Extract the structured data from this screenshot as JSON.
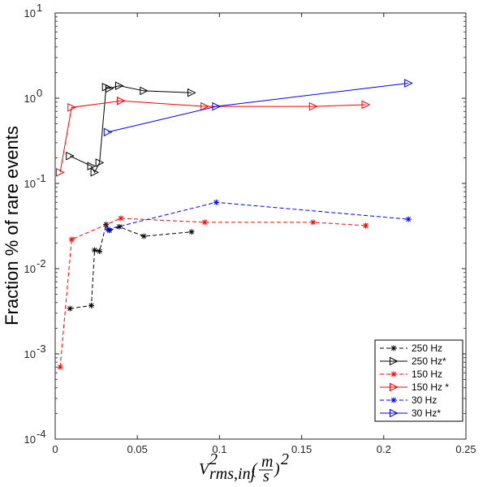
{
  "chart_data": {
    "type": "line",
    "title": "",
    "xlabel": {
      "base": "V",
      "sup": "2",
      "sub": "rms,inj",
      "paren_open": "(",
      "frac_num": "m",
      "frac_den": "s",
      "paren_close": ")",
      "sup2": "2"
    },
    "ylabel": "Fraction % of rare events",
    "yscale": "log",
    "xlim": [
      0,
      0.25
    ],
    "ylim": [
      0.0001,
      10
    ],
    "xticks": [
      {
        "value": 0,
        "label": "0"
      },
      {
        "value": 0.05,
        "label": "0.05"
      },
      {
        "value": 0.1,
        "label": "0.1"
      },
      {
        "value": 0.15,
        "label": "0.15"
      },
      {
        "value": 0.2,
        "label": "0.2"
      },
      {
        "value": 0.25,
        "label": "0.25"
      }
    ],
    "yticks": [
      {
        "value": 0.0001,
        "base": "10",
        "exp": "-4"
      },
      {
        "value": 0.001,
        "base": "10",
        "exp": "-3"
      },
      {
        "value": 0.01,
        "base": "10",
        "exp": "-2"
      },
      {
        "value": 0.1,
        "base": "10",
        "exp": "-1"
      },
      {
        "value": 1,
        "base": "10",
        "exp": "0"
      },
      {
        "value": 10,
        "base": "10",
        "exp": "1"
      }
    ],
    "legend_position": "bottom-right",
    "series": [
      {
        "name": "250 Hz",
        "color": "#000000",
        "dash": "dashed",
        "marker": "star",
        "x": [
          0.009,
          0.022,
          0.024,
          0.027,
          0.031,
          0.033,
          0.039,
          0.054,
          0.083
        ],
        "y": [
          0.0034,
          0.0037,
          0.0165,
          0.016,
          0.033,
          0.028,
          0.031,
          0.024,
          0.027
        ]
      },
      {
        "name": "250 Hz*",
        "color": "#000000",
        "dash": "solid",
        "marker": "triangle-right",
        "x": [
          0.009,
          0.022,
          0.024,
          0.027,
          0.031,
          0.033,
          0.039,
          0.054,
          0.083
        ],
        "y": [
          0.21,
          0.16,
          0.135,
          0.175,
          1.35,
          1.3,
          1.4,
          1.22,
          1.16
        ]
      },
      {
        "name": "150 Hz",
        "color": "#ff0000",
        "dash": "dashed",
        "marker": "star",
        "x": [
          0.003,
          0.01,
          0.04,
          0.091,
          0.157,
          0.189
        ],
        "y": [
          0.0007,
          0.022,
          0.039,
          0.035,
          0.035,
          0.032
        ]
      },
      {
        "name": "150 Hz *",
        "color": "#ff0000",
        "dash": "solid",
        "marker": "triangle-right",
        "x": [
          0.003,
          0.01,
          0.04,
          0.091,
          0.157,
          0.189
        ],
        "y": [
          0.135,
          0.78,
          0.93,
          0.8,
          0.8,
          0.84
        ]
      },
      {
        "name": "30 Hz",
        "color": "#0000ff",
        "dash": "dashed",
        "marker": "star",
        "x": [
          0.032,
          0.098,
          0.215
        ],
        "y": [
          0.029,
          0.06,
          0.038
        ]
      },
      {
        "name": "30 Hz*",
        "color": "#0000ff",
        "dash": "solid",
        "marker": "triangle-right",
        "x": [
          0.032,
          0.098,
          0.215
        ],
        "y": [
          0.4,
          0.8,
          1.5
        ]
      }
    ]
  }
}
